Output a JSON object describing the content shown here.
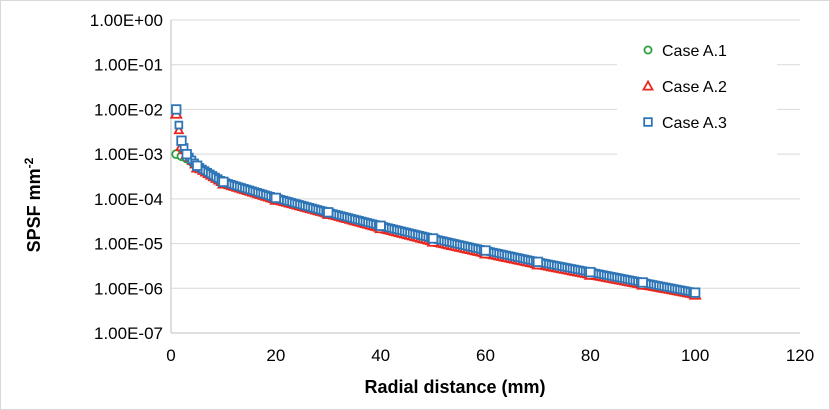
{
  "chart_data": {
    "type": "scatter",
    "title": "",
    "xlabel": "Radial distance (mm)",
    "ylabel": "SPSF mm",
    "ylabel_superscript": "-2",
    "xlim": [
      0,
      120
    ],
    "ylim": [
      1e-07,
      1
    ],
    "y_scale": "log",
    "x_ticks": [
      "0",
      "20",
      "40",
      "60",
      "80",
      "100",
      "120"
    ],
    "y_ticks": [
      "1.00E+00",
      "1.00E-01",
      "1.00E-02",
      "1.00E-03",
      "1.00E-04",
      "1.00E-05",
      "1.00E-06",
      "1.00E-07"
    ],
    "grid": "horizontal",
    "legend_position": "top-right",
    "series": [
      {
        "name": "Case A.1",
        "marker": "circle",
        "color": "#2e9e3e",
        "points": [
          [
            1,
            0.001
          ],
          [
            2,
            0.0009
          ],
          [
            3,
            0.0008
          ],
          [
            5,
            0.0005
          ],
          [
            10,
            0.00022
          ],
          [
            20,
            9.5e-05
          ],
          [
            30,
            4.6e-05
          ],
          [
            40,
            2.2e-05
          ],
          [
            50,
            1.1e-05
          ],
          [
            60,
            6e-06
          ],
          [
            70,
            3.4e-06
          ],
          [
            80,
            2e-06
          ],
          [
            90,
            1.2e-06
          ],
          [
            100,
            7.5e-07
          ]
        ]
      },
      {
        "name": "Case A.2",
        "marker": "triangle",
        "color": "#e8261e",
        "points": [
          [
            1,
            0.008
          ],
          [
            2,
            0.0015
          ],
          [
            3,
            0.001
          ],
          [
            5,
            0.0005
          ],
          [
            10,
            0.00022
          ],
          [
            20,
            9.5e-05
          ],
          [
            30,
            4.6e-05
          ],
          [
            40,
            2.2e-05
          ],
          [
            50,
            1.1e-05
          ],
          [
            60,
            6e-06
          ],
          [
            70,
            3.4e-06
          ],
          [
            80,
            2e-06
          ],
          [
            90,
            1.2e-06
          ],
          [
            100,
            7.2e-07
          ]
        ]
      },
      {
        "name": "Case A.3",
        "marker": "square",
        "color": "#2e75b6",
        "points": [
          [
            1,
            0.01
          ],
          [
            2,
            0.002
          ],
          [
            3,
            0.001
          ],
          [
            5,
            0.00055
          ],
          [
            10,
            0.00024
          ],
          [
            20,
            0.000105
          ],
          [
            30,
            5e-05
          ],
          [
            40,
            2.5e-05
          ],
          [
            50,
            1.3e-05
          ],
          [
            60,
            7e-06
          ],
          [
            70,
            3.9e-06
          ],
          [
            80,
            2.3e-06
          ],
          [
            90,
            1.35e-06
          ],
          [
            100,
            8e-07
          ]
        ]
      }
    ]
  }
}
